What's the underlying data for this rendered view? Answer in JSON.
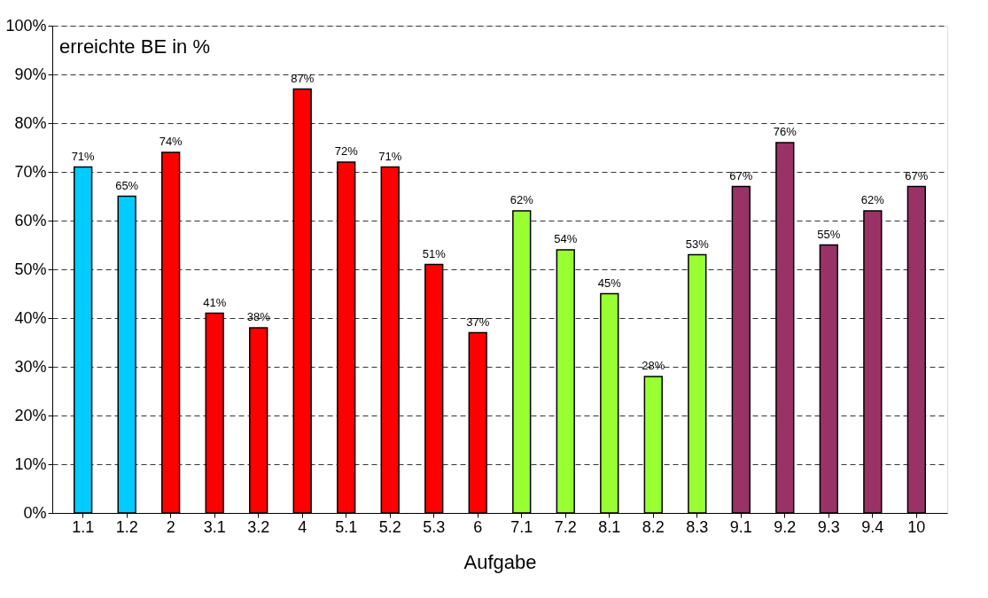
{
  "chart_data": {
    "type": "bar",
    "ylabel": "erreichte BE in %",
    "xlabel": "Aufgabe",
    "categories": [
      "1.1",
      "1.2",
      "2",
      "3.1",
      "3.2",
      "4",
      "5.1",
      "5.2",
      "5.3",
      "6",
      "7.1",
      "7.2",
      "8.1",
      "8.2",
      "8.3",
      "9.1",
      "9.2",
      "9.3",
      "9.4",
      "10"
    ],
    "values": [
      71,
      65,
      74,
      41,
      38,
      87,
      72,
      71,
      51,
      37,
      62,
      54,
      45,
      28,
      53,
      67,
      76,
      55,
      62,
      67
    ],
    "value_labels": [
      "71%",
      "65%",
      "74%",
      "41%",
      "38%",
      "87%",
      "72%",
      "71%",
      "51%",
      "37%",
      "62%",
      "54%",
      "45%",
      "28%",
      "53%",
      "67%",
      "76%",
      "55%",
      "62%",
      "67%"
    ],
    "colors": [
      "#00ccff",
      "#00ccff",
      "#ff0000",
      "#ff0000",
      "#ff0000",
      "#ff0000",
      "#ff0000",
      "#ff0000",
      "#ff0000",
      "#ff0000",
      "#99ff33",
      "#99ff33",
      "#99ff33",
      "#99ff33",
      "#99ff33",
      "#993366",
      "#993366",
      "#993366",
      "#993366",
      "#993366"
    ],
    "ylim": [
      0,
      100
    ],
    "yticks": [
      {
        "value": 0,
        "label": "0%"
      },
      {
        "value": 10,
        "label": "10%"
      },
      {
        "value": 20,
        "label": "20%"
      },
      {
        "value": 30,
        "label": "30%"
      },
      {
        "value": 40,
        "label": "40%"
      },
      {
        "value": 50,
        "label": "50%"
      },
      {
        "value": 60,
        "label": "60%"
      },
      {
        "value": 70,
        "label": "70%"
      },
      {
        "value": 80,
        "label": "80%"
      },
      {
        "value": 90,
        "label": "90%"
      },
      {
        "value": 100,
        "label": "100%"
      }
    ],
    "grid": "y"
  }
}
